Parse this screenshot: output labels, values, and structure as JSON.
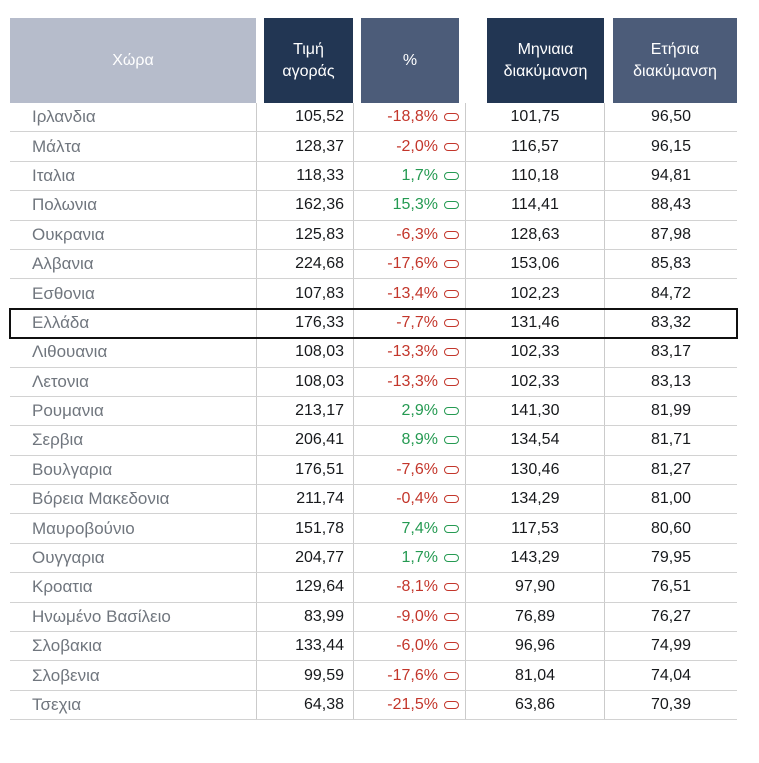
{
  "chart_data": {
    "type": "table",
    "columns": [
      "Χώρα",
      "Τιμή αγοράς",
      "%",
      "Μηνιαια διακύμανση",
      "Ετήσια διακύμανση"
    ],
    "rows": [
      {
        "country": "Ιρλανδια",
        "price": "105,52",
        "percent": "-18,8%",
        "trend": "down",
        "monthly": "101,75",
        "annual": "96,50",
        "highlight": false
      },
      {
        "country": "Μάλτα",
        "price": "128,37",
        "percent": "-2,0%",
        "trend": "down",
        "monthly": "116,57",
        "annual": "96,15",
        "highlight": false
      },
      {
        "country": "Ιταλια",
        "price": "118,33",
        "percent": "1,7%",
        "trend": "up",
        "monthly": "110,18",
        "annual": "94,81",
        "highlight": false
      },
      {
        "country": "Πολωνια",
        "price": "162,36",
        "percent": "15,3%",
        "trend": "up",
        "monthly": "114,41",
        "annual": "88,43",
        "highlight": false
      },
      {
        "country": "Ουκρανια",
        "price": "125,83",
        "percent": "-6,3%",
        "trend": "down",
        "monthly": "128,63",
        "annual": "87,98",
        "highlight": false
      },
      {
        "country": "Αλβανια",
        "price": "224,68",
        "percent": "-17,6%",
        "trend": "down",
        "monthly": "153,06",
        "annual": "85,83",
        "highlight": false
      },
      {
        "country": "Εσθονια",
        "price": "107,83",
        "percent": "-13,4%",
        "trend": "down",
        "monthly": "102,23",
        "annual": "84,72",
        "highlight": false
      },
      {
        "country": "Ελλάδα",
        "price": "176,33",
        "percent": "-7,7%",
        "trend": "down",
        "monthly": "131,46",
        "annual": "83,32",
        "highlight": true
      },
      {
        "country": "Λιθουανια",
        "price": "108,03",
        "percent": "-13,3%",
        "trend": "down",
        "monthly": "102,33",
        "annual": "83,17",
        "highlight": false
      },
      {
        "country": "Λετονια",
        "price": "108,03",
        "percent": "-13,3%",
        "trend": "down",
        "monthly": "102,33",
        "annual": "83,13",
        "highlight": false
      },
      {
        "country": "Ρουμανια",
        "price": "213,17",
        "percent": "2,9%",
        "trend": "up",
        "monthly": "141,30",
        "annual": "81,99",
        "highlight": false
      },
      {
        "country": "Σερβια",
        "price": "206,41",
        "percent": "8,9%",
        "trend": "up",
        "monthly": "134,54",
        "annual": "81,71",
        "highlight": false
      },
      {
        "country": "Βουλγαρια",
        "price": "176,51",
        "percent": "-7,6%",
        "trend": "down",
        "monthly": "130,46",
        "annual": "81,27",
        "highlight": false
      },
      {
        "country": "Βόρεια Μακεδονια",
        "price": "211,74",
        "percent": "-0,4%",
        "trend": "down",
        "monthly": "134,29",
        "annual": "81,00",
        "highlight": false
      },
      {
        "country": "Μαυροβούνιο",
        "price": "151,78",
        "percent": "7,4%",
        "trend": "up",
        "monthly": "117,53",
        "annual": "80,60",
        "highlight": false
      },
      {
        "country": "Ουγγαρια",
        "price": "204,77",
        "percent": "1,7%",
        "trend": "up",
        "monthly": "143,29",
        "annual": "79,95",
        "highlight": false
      },
      {
        "country": "Κροατια",
        "price": "129,64",
        "percent": "-8,1%",
        "trend": "down",
        "monthly": "97,90",
        "annual": "76,51",
        "highlight": false
      },
      {
        "country": "Ηνωμένο Βασίλειο",
        "price": "83,99",
        "percent": "-9,0%",
        "trend": "down",
        "monthly": "76,89",
        "annual": "76,27",
        "highlight": false
      },
      {
        "country": "Σλοβακια",
        "price": "133,44",
        "percent": "-6,0%",
        "trend": "down",
        "monthly": "96,96",
        "annual": "74,99",
        "highlight": false
      },
      {
        "country": "Σλοβενια",
        "price": "99,59",
        "percent": "-17,6%",
        "trend": "down",
        "monthly": "81,04",
        "annual": "74,04",
        "highlight": false
      },
      {
        "country": "Τσεχια",
        "price": "64,38",
        "percent": "-21,5%",
        "trend": "down",
        "monthly": "63,86",
        "annual": "70,39",
        "highlight": false
      }
    ]
  },
  "colors": {
    "header_country_bg": "#b6bccb",
    "header_dark_bg": "#223653",
    "header_light_bg": "#4c5c79",
    "negative": "#c3362b",
    "positive": "#259a52",
    "highlight_border": "#101010",
    "country_text": "#70767e",
    "value_text": "#17191c"
  }
}
